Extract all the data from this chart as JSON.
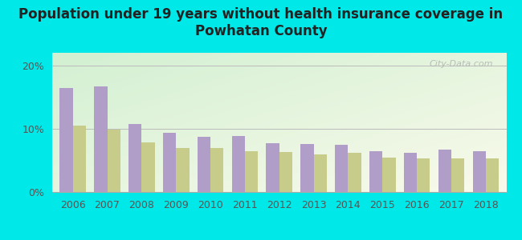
{
  "title": "Population under 19 years without health insurance coverage in\nPowhatan County",
  "years": [
    2006,
    2007,
    2008,
    2009,
    2010,
    2011,
    2012,
    2013,
    2014,
    2015,
    2016,
    2017,
    2018
  ],
  "powhatan": [
    16.5,
    16.7,
    10.7,
    9.3,
    8.7,
    8.9,
    7.7,
    7.6,
    7.5,
    6.4,
    6.2,
    6.7,
    6.4
  ],
  "virginia": [
    10.5,
    9.8,
    7.8,
    7.0,
    6.9,
    6.5,
    6.3,
    6.0,
    6.2,
    5.5,
    5.3,
    5.3,
    5.3
  ],
  "powhatan_color": "#b09ec9",
  "virginia_color": "#c8cc8a",
  "bg_outer": "#00e8e8",
  "ylim": [
    0,
    22
  ],
  "yticks": [
    0,
    10,
    20
  ],
  "ytick_labels": [
    "0%",
    "10%",
    "20%"
  ],
  "bar_width": 0.38,
  "title_fontsize": 12,
  "tick_fontsize": 9,
  "legend_fontsize": 9,
  "watermark_text": "City-Data.com"
}
